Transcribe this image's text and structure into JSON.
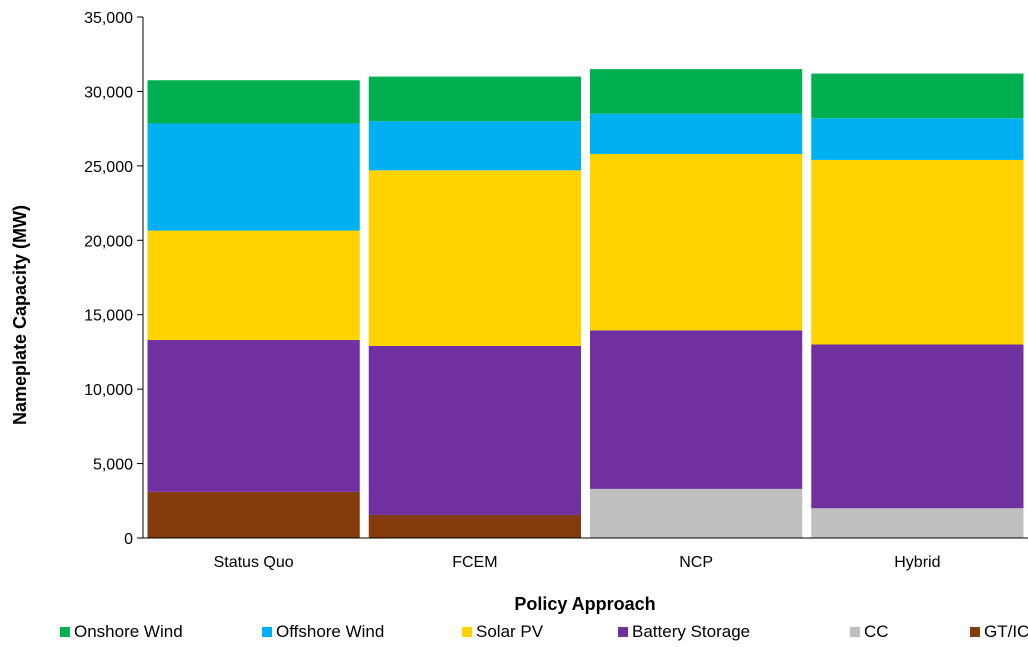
{
  "chart_data": {
    "type": "bar",
    "stacked": true,
    "categories": [
      "Status Quo",
      "FCEM",
      "NCP",
      "Hybrid"
    ],
    "series": [
      {
        "name": "GT/IC",
        "color": "#843C0C",
        "values": [
          3100,
          1550,
          0,
          0
        ]
      },
      {
        "name": "CC",
        "color": "#BFBFBF",
        "values": [
          0,
          0,
          3300,
          2000
        ]
      },
      {
        "name": "Battery Storage",
        "color": "#7030A0",
        "values": [
          10200,
          11350,
          10650,
          11000
        ]
      },
      {
        "name": "Solar PV",
        "color": "#FFD200",
        "values": [
          7350,
          11800,
          11850,
          12400
        ]
      },
      {
        "name": "Offshore Wind",
        "color": "#00B0F0",
        "values": [
          7200,
          3300,
          2700,
          2800
        ]
      },
      {
        "name": "Onshore Wind",
        "color": "#00B050",
        "values": [
          2900,
          3000,
          3000,
          3000
        ]
      }
    ],
    "xlabel": "Policy Approach",
    "ylabel": "Nameplate Capacity (MW)",
    "ylim": [
      0,
      35000
    ],
    "yticks": [
      "0",
      "5,000",
      "10,000",
      "15,000",
      "20,000",
      "25,000",
      "30,000",
      "35,000"
    ],
    "grid": false,
    "legend_position": "bottom",
    "legend_order": [
      "Onshore Wind",
      "Offshore Wind",
      "Solar PV",
      "Battery Storage",
      "CC",
      "GT/IC"
    ]
  }
}
